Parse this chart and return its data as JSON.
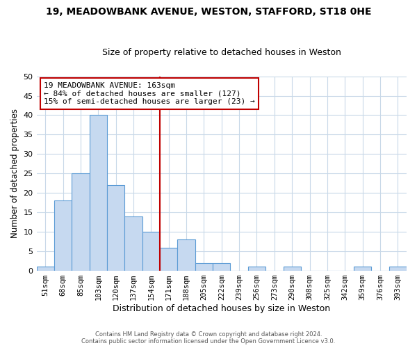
{
  "title": "19, MEADOWBANK AVENUE, WESTON, STAFFORD, ST18 0HE",
  "subtitle": "Size of property relative to detached houses in Weston",
  "xlabel": "Distribution of detached houses by size in Weston",
  "ylabel": "Number of detached properties",
  "bin_labels": [
    "51sqm",
    "68sqm",
    "85sqm",
    "103sqm",
    "120sqm",
    "137sqm",
    "154sqm",
    "171sqm",
    "188sqm",
    "205sqm",
    "222sqm",
    "239sqm",
    "256sqm",
    "273sqm",
    "290sqm",
    "308sqm",
    "325sqm",
    "342sqm",
    "359sqm",
    "376sqm",
    "393sqm"
  ],
  "bar_heights": [
    1,
    18,
    25,
    40,
    22,
    14,
    10,
    6,
    8,
    2,
    2,
    0,
    1,
    0,
    1,
    0,
    0,
    0,
    1,
    0,
    1
  ],
  "bar_color": "#c6d9f0",
  "bar_edge_color": "#5b9bd5",
  "vline_x_index": 7,
  "vline_color": "#c00000",
  "annotation_text": "19 MEADOWBANK AVENUE: 163sqm\n← 84% of detached houses are smaller (127)\n15% of semi-detached houses are larger (23) →",
  "annotation_box_color": "#ffffff",
  "annotation_box_edge": "#c00000",
  "ylim": [
    0,
    50
  ],
  "yticks": [
    0,
    5,
    10,
    15,
    20,
    25,
    30,
    35,
    40,
    45,
    50
  ],
  "footer_line1": "Contains HM Land Registry data © Crown copyright and database right 2024.",
  "footer_line2": "Contains public sector information licensed under the Open Government Licence v3.0.",
  "bg_color": "#ffffff",
  "grid_color": "#c8d8e8"
}
